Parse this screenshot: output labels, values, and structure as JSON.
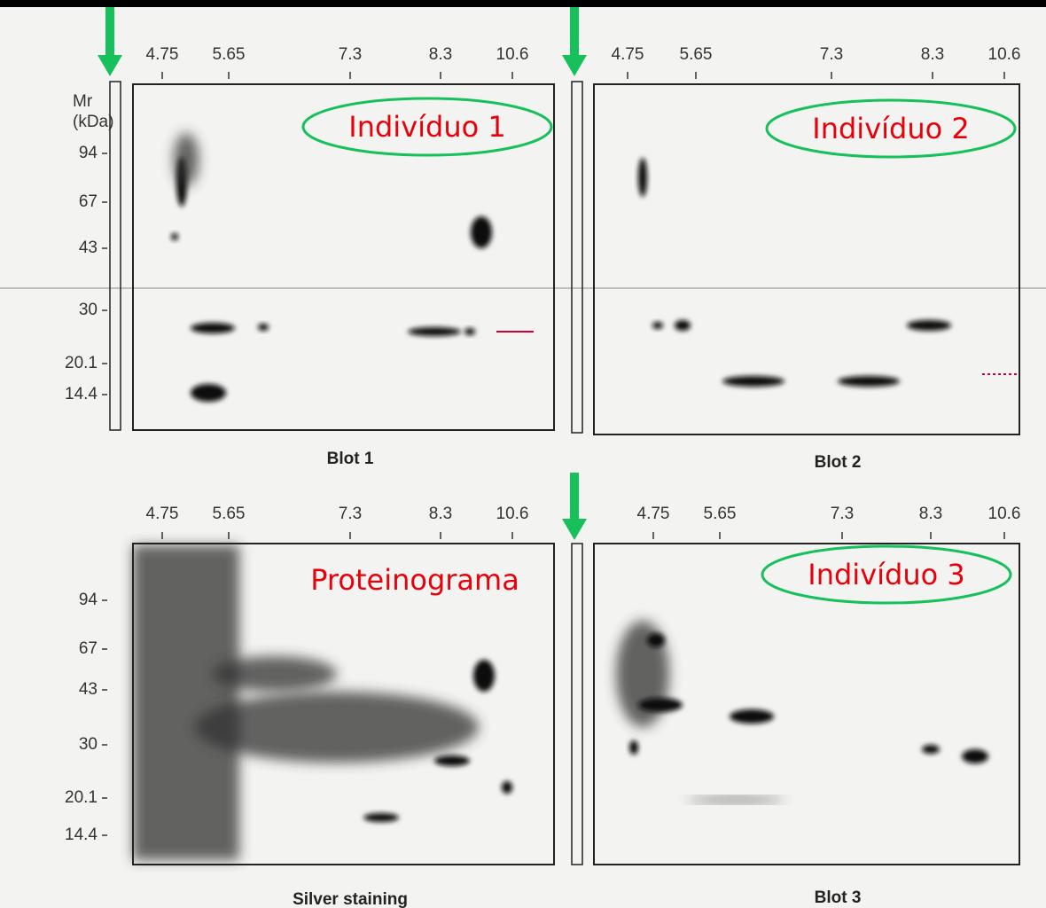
{
  "y_axis_title_lines": [
    "Mr",
    "(kDa)"
  ],
  "panels": [
    {
      "caption": "Blot 1",
      "ph_labels": [
        "4.75",
        "5.65",
        "7.3",
        "8.3",
        "10.6"
      ],
      "mr_labels": [
        "94",
        "67",
        "43",
        "30",
        "20.1",
        "14.4"
      ],
      "annotation": "Indivíduo 1"
    },
    {
      "caption": "Blot 2",
      "ph_labels": [
        "4.75",
        "5.65",
        "7.3",
        "8.3",
        "10.6"
      ],
      "mr_labels": [],
      "annotation": "Indivíduo 2"
    },
    {
      "caption": "Silver staining",
      "ph_labels": [
        "4.75",
        "5.65",
        "7.3",
        "8.3",
        "10.6"
      ],
      "mr_labels": [
        "94",
        "67",
        "43",
        "30",
        "20.1",
        "14.4"
      ],
      "annotation": "Proteinograma"
    },
    {
      "caption": "Blot 3",
      "ph_labels": [
        "4.75",
        "5.65",
        "7.3",
        "8.3",
        "10.6"
      ],
      "mr_labels": [],
      "annotation": "Indivíduo 3"
    }
  ]
}
